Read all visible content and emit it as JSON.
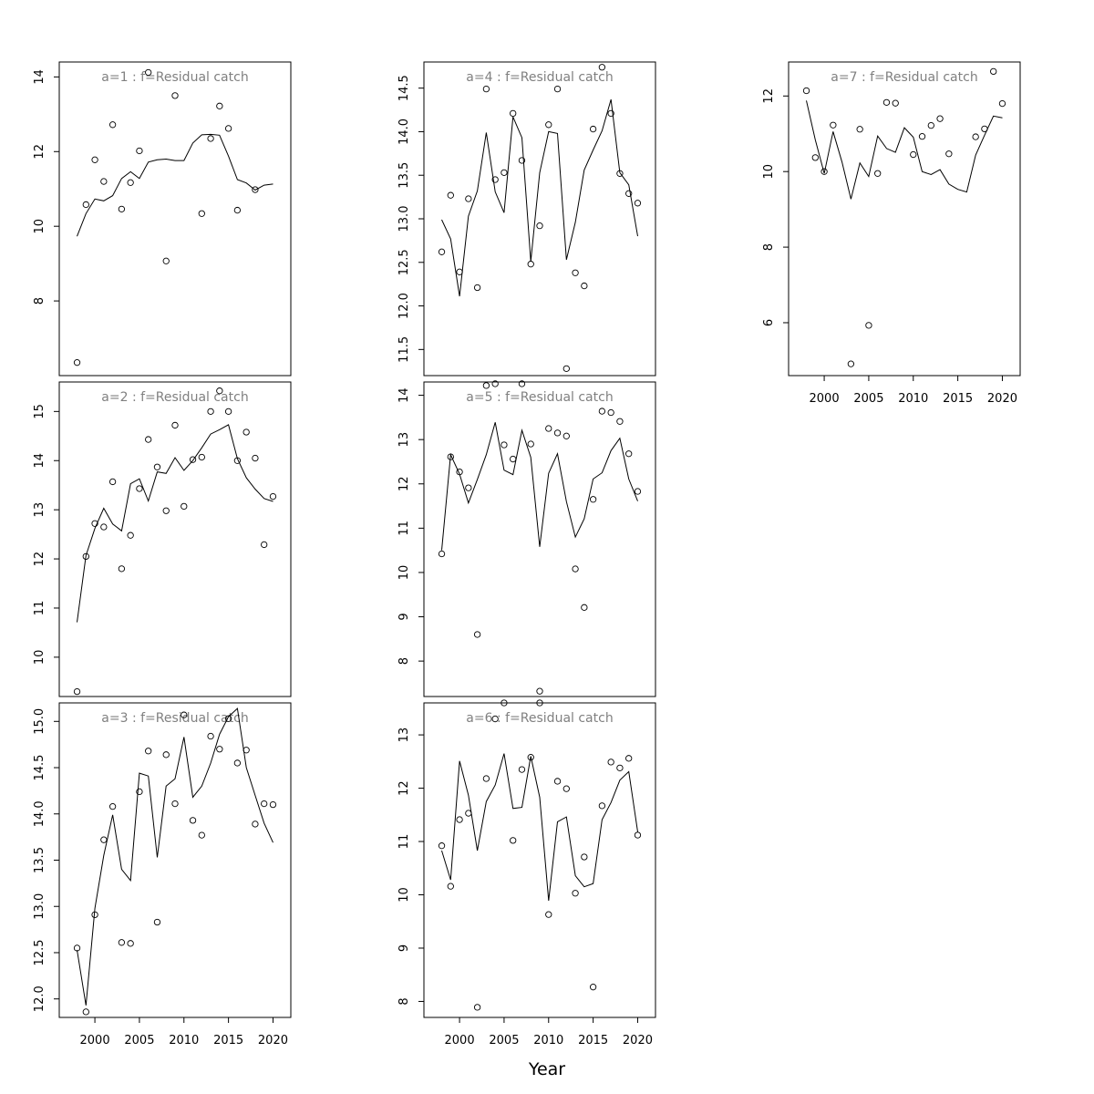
{
  "figure": {
    "xlabel": "Year"
  },
  "chart_data": [
    {
      "type": "line",
      "title": "a=1  :  f=Residual catch",
      "ylim": [
        6.0,
        14.4
      ],
      "yticks": [
        8,
        10,
        12,
        14
      ],
      "xlim": [
        1996,
        2022
      ],
      "xticks": [],
      "series": [
        {
          "kind": "points",
          "x": [
            1998,
            1999,
            2000,
            2001,
            2002,
            2003,
            2004,
            2005,
            2006,
            2008,
            2009,
            2012,
            2013,
            2014,
            2015,
            2016,
            2018
          ],
          "y": [
            6.35,
            10.58,
            11.78,
            11.2,
            12.72,
            10.46,
            11.17,
            12.02,
            14.12,
            9.07,
            13.5,
            10.34,
            12.35,
            13.22,
            12.62,
            10.43,
            10.98
          ]
        },
        {
          "kind": "line",
          "x": [
            1998,
            1999,
            2000,
            2001,
            2002,
            2003,
            2004,
            2005,
            2006,
            2007,
            2008,
            2009,
            2010,
            2011,
            2012,
            2013,
            2014,
            2015,
            2016,
            2017,
            2018,
            2019,
            2020
          ],
          "y": [
            9.73,
            10.34,
            10.73,
            10.68,
            10.82,
            11.28,
            11.46,
            11.28,
            11.72,
            11.78,
            11.8,
            11.76,
            11.76,
            12.23,
            12.45,
            12.46,
            12.44,
            11.88,
            11.25,
            11.16,
            10.97,
            11.1,
            11.13
          ]
        }
      ]
    },
    {
      "type": "line",
      "title": "a=2  :  f=Residual catch",
      "ylim": [
        9.2,
        15.6
      ],
      "yticks": [
        10,
        11,
        12,
        13,
        14,
        15
      ],
      "xlim": [
        1996,
        2022
      ],
      "xticks": [],
      "series": [
        {
          "kind": "points",
          "x": [
            1998,
            1999,
            2000,
            2001,
            2002,
            2003,
            2004,
            2005,
            2006,
            2007,
            2008,
            2009,
            2010,
            2011,
            2012,
            2013,
            2014,
            2015,
            2016,
            2017,
            2018,
            2019,
            2020
          ],
          "y": [
            9.3,
            12.05,
            12.72,
            12.65,
            13.57,
            11.8,
            12.48,
            13.43,
            14.43,
            13.87,
            12.98,
            14.72,
            13.07,
            14.02,
            14.07,
            15.0,
            15.42,
            15.0,
            14.0,
            14.58,
            14.05,
            12.29,
            13.27
          ]
        },
        {
          "kind": "line",
          "x": [
            1998,
            1999,
            2000,
            2001,
            2002,
            2003,
            2004,
            2005,
            2006,
            2007,
            2008,
            2009,
            2010,
            2011,
            2012,
            2013,
            2014,
            2015,
            2016,
            2017,
            2018,
            2019,
            2020
          ],
          "y": [
            10.71,
            12.07,
            12.62,
            13.03,
            12.71,
            12.57,
            13.53,
            13.63,
            13.18,
            13.77,
            13.74,
            14.06,
            13.8,
            14.0,
            14.26,
            14.54,
            14.63,
            14.73,
            14.04,
            13.65,
            13.42,
            13.23,
            13.17
          ]
        }
      ]
    },
    {
      "type": "line",
      "title": "a=3  :  f=Residual catch",
      "ylim": [
        11.8,
        15.2
      ],
      "yticks": [
        12.0,
        12.5,
        13.0,
        13.5,
        14.0,
        14.5,
        15.0
      ],
      "xlim": [
        1996,
        2022
      ],
      "xticks": [
        2000,
        2005,
        2010,
        2015,
        2020
      ],
      "series": [
        {
          "kind": "points",
          "x": [
            1998,
            1999,
            2000,
            2001,
            2002,
            2003,
            2004,
            2005,
            2006,
            2007,
            2008,
            2009,
            2010,
            2011,
            2012,
            2013,
            2014,
            2015,
            2016,
            2017,
            2018,
            2019,
            2020
          ],
          "y": [
            12.55,
            11.86,
            12.91,
            13.72,
            14.08,
            12.61,
            12.6,
            14.24,
            14.68,
            12.83,
            14.64,
            14.11,
            15.07,
            13.93,
            13.77,
            14.84,
            14.7,
            15.03,
            14.55,
            14.69,
            13.89,
            14.11,
            14.1
          ]
        },
        {
          "kind": "line",
          "x": [
            1998,
            1999,
            2000,
            2001,
            2002,
            2003,
            2004,
            2005,
            2006,
            2007,
            2008,
            2009,
            2010,
            2011,
            2012,
            2013,
            2014,
            2015,
            2016,
            2017,
            2018,
            2019,
            2020
          ],
          "y": [
            12.53,
            11.93,
            12.98,
            13.55,
            13.99,
            13.4,
            13.28,
            14.44,
            14.41,
            13.53,
            14.3,
            14.38,
            14.83,
            14.18,
            14.3,
            14.55,
            14.86,
            15.05,
            15.14,
            14.5,
            14.2,
            13.9,
            13.69
          ]
        }
      ]
    },
    {
      "type": "line",
      "title": "a=4  :  f=Residual catch",
      "ylim": [
        11.2,
        14.8
      ],
      "yticks": [
        11.5,
        12.0,
        12.5,
        13.0,
        13.5,
        14.0,
        14.5
      ],
      "xlim": [
        1996,
        2022
      ],
      "xticks": [],
      "series": [
        {
          "kind": "points",
          "x": [
            1998,
            1999,
            2000,
            2001,
            2002,
            2003,
            2004,
            2005,
            2006,
            2007,
            2008,
            2009,
            2010,
            2011,
            2012,
            2013,
            2014,
            2015,
            2016,
            2017,
            2018,
            2019,
            2020
          ],
          "y": [
            12.62,
            13.27,
            12.39,
            13.23,
            12.21,
            14.49,
            13.45,
            13.53,
            14.21,
            13.67,
            12.48,
            12.92,
            14.08,
            14.49,
            11.28,
            12.38,
            12.23,
            14.03,
            14.74,
            14.21,
            13.52,
            13.29,
            13.18
          ]
        },
        {
          "kind": "line",
          "x": [
            1998,
            1999,
            2000,
            2001,
            2002,
            2003,
            2004,
            2005,
            2006,
            2007,
            2008,
            2009,
            2010,
            2011,
            2012,
            2013,
            2014,
            2015,
            2016,
            2017,
            2018,
            2019,
            2020
          ],
          "y": [
            12.99,
            12.77,
            12.11,
            13.03,
            13.32,
            13.99,
            13.31,
            13.07,
            14.17,
            13.93,
            12.51,
            13.53,
            14.0,
            13.98,
            12.53,
            12.96,
            13.56,
            13.79,
            14.01,
            14.37,
            13.53,
            13.39,
            12.8
          ]
        }
      ]
    },
    {
      "type": "line",
      "title": "a=5  :  f=Residual catch",
      "ylim": [
        7.2,
        14.3
      ],
      "yticks": [
        8,
        9,
        10,
        11,
        12,
        13,
        14
      ],
      "xlim": [
        1996,
        2022
      ],
      "xticks": [],
      "series": [
        {
          "kind": "points",
          "x": [
            1998,
            1999,
            2000,
            2001,
            2002,
            2003,
            2004,
            2005,
            2006,
            2007,
            2008,
            2009,
            2010,
            2011,
            2012,
            2013,
            2014,
            2015,
            2016,
            2017,
            2018,
            2019,
            2020
          ],
          "y": [
            10.42,
            12.61,
            12.27,
            11.91,
            8.6,
            14.22,
            14.26,
            12.88,
            12.56,
            14.26,
            12.9,
            7.32,
            13.25,
            13.15,
            13.08,
            10.08,
            9.21,
            11.65,
            13.64,
            13.61,
            13.41,
            12.68,
            11.83
          ]
        },
        {
          "kind": "line",
          "x": [
            1998,
            1999,
            2000,
            2001,
            2002,
            2003,
            2004,
            2005,
            2006,
            2007,
            2008,
            2009,
            2010,
            2011,
            2012,
            2013,
            2014,
            2015,
            2016,
            2017,
            2018,
            2019,
            2020
          ],
          "y": [
            10.5,
            12.66,
            12.22,
            11.57,
            12.1,
            12.66,
            13.39,
            12.31,
            12.21,
            13.21,
            12.6,
            10.58,
            12.24,
            12.68,
            11.6,
            10.8,
            11.21,
            12.11,
            12.25,
            12.75,
            13.03,
            12.11,
            11.61
          ]
        }
      ]
    },
    {
      "type": "line",
      "title": "a=6  :  f=Residual catch",
      "ylim": [
        7.7,
        13.6
      ],
      "yticks": [
        8,
        9,
        10,
        11,
        12,
        13
      ],
      "xlim": [
        1996,
        2022
      ],
      "xticks": [
        2000,
        2005,
        2010,
        2015,
        2020
      ],
      "series": [
        {
          "kind": "points",
          "x": [
            1998,
            1999,
            2000,
            2001,
            2002,
            2003,
            2004,
            2005,
            2006,
            2007,
            2008,
            2009,
            2010,
            2011,
            2012,
            2013,
            2014,
            2015,
            2016,
            2017,
            2018,
            2019,
            2020
          ],
          "y": [
            10.92,
            10.16,
            11.41,
            11.53,
            7.89,
            12.18,
            13.3,
            13.6,
            11.02,
            12.35,
            12.58,
            13.6,
            9.63,
            12.13,
            11.99,
            10.03,
            10.71,
            8.27,
            11.67,
            12.49,
            12.38,
            12.56,
            11.12
          ]
        },
        {
          "kind": "line",
          "x": [
            1998,
            1999,
            2000,
            2001,
            2002,
            2003,
            2004,
            2005,
            2006,
            2007,
            2008,
            2009,
            2010,
            2011,
            2012,
            2013,
            2014,
            2015,
            2016,
            2017,
            2018,
            2019,
            2020
          ],
          "y": [
            10.83,
            10.28,
            12.51,
            11.87,
            10.83,
            11.75,
            12.06,
            12.65,
            11.62,
            11.64,
            12.6,
            11.83,
            9.89,
            11.37,
            11.46,
            10.36,
            10.15,
            10.21,
            11.41,
            11.73,
            12.15,
            12.31,
            11.18
          ]
        }
      ]
    },
    {
      "type": "line",
      "title": "a=7  :  f=Residual catch",
      "ylim": [
        4.6,
        12.9
      ],
      "yticks": [
        6,
        8,
        10,
        12
      ],
      "xlim": [
        1996,
        2022
      ],
      "xticks": [
        2000,
        2005,
        2010,
        2015,
        2020
      ],
      "series": [
        {
          "kind": "points",
          "x": [
            1998,
            1999,
            2000,
            2001,
            2003,
            2004,
            2005,
            2006,
            2007,
            2008,
            2010,
            2011,
            2012,
            2013,
            2014,
            2017,
            2018,
            2019,
            2020
          ],
          "y": [
            12.14,
            10.37,
            10.0,
            11.23,
            4.91,
            11.12,
            5.93,
            9.95,
            11.83,
            11.81,
            10.45,
            10.93,
            11.22,
            11.4,
            10.47,
            10.92,
            11.13,
            12.65,
            11.8
          ]
        },
        {
          "kind": "line",
          "x": [
            1998,
            1999,
            2000,
            2001,
            2002,
            2003,
            2004,
            2005,
            2006,
            2007,
            2008,
            2009,
            2010,
            2011,
            2012,
            2013,
            2014,
            2015,
            2016,
            2017,
            2018,
            2019,
            2020
          ],
          "y": [
            11.88,
            10.84,
            9.95,
            11.06,
            10.25,
            9.27,
            10.23,
            9.87,
            10.94,
            10.61,
            10.51,
            11.16,
            10.91,
            10.0,
            9.92,
            10.05,
            9.67,
            9.53,
            9.46,
            10.44,
            10.96,
            11.47,
            11.42
          ]
        }
      ]
    }
  ]
}
